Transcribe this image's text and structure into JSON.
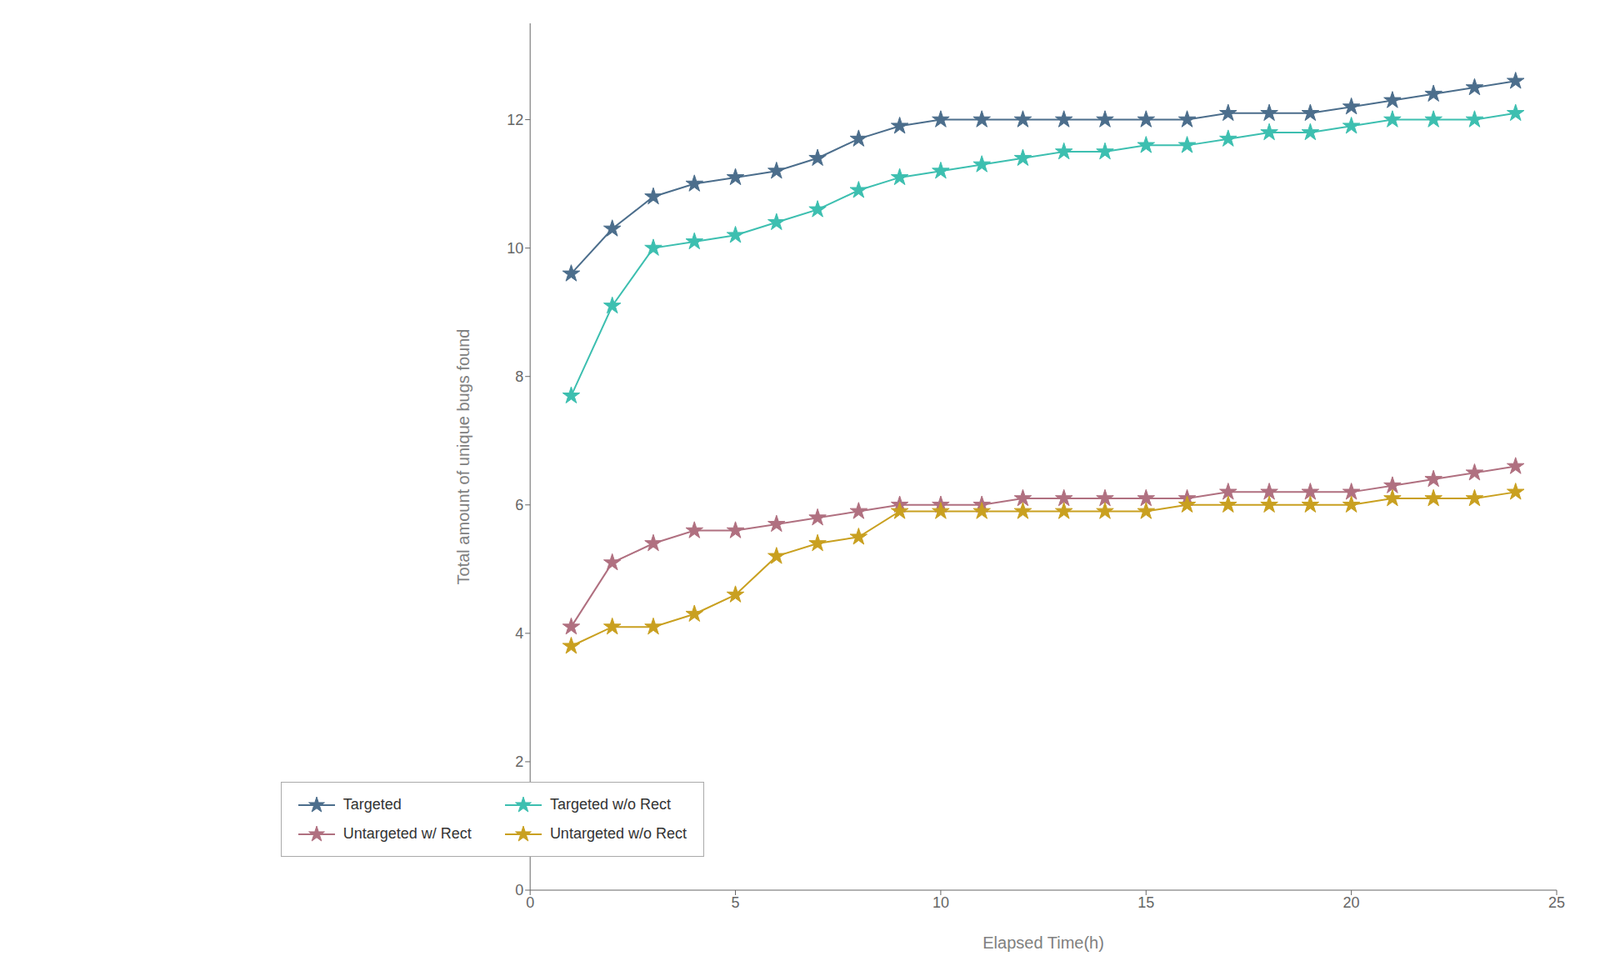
{
  "chart_data": {
    "type": "line",
    "x": [
      1,
      2,
      3,
      4,
      5,
      6,
      7,
      8,
      9,
      10,
      11,
      12,
      13,
      14,
      15,
      16,
      17,
      18,
      19,
      20,
      21,
      22,
      23,
      24
    ],
    "series": [
      {
        "name": "Targeted",
        "color": "#4c6e8c",
        "marker": "star",
        "values": [
          9.6,
          10.3,
          10.8,
          11.0,
          11.1,
          11.2,
          11.4,
          11.7,
          11.9,
          12.0,
          12.0,
          12.0,
          12.0,
          12.0,
          12.0,
          12.0,
          12.1,
          12.1,
          12.1,
          12.2,
          12.3,
          12.4,
          12.5,
          12.6
        ]
      },
      {
        "name": "Targeted w/o Rect",
        "color": "#3dbfb0",
        "marker": "star",
        "values": [
          7.7,
          9.1,
          10.0,
          10.1,
          10.2,
          10.4,
          10.6,
          10.9,
          11.1,
          11.2,
          11.3,
          11.4,
          11.5,
          11.5,
          11.6,
          11.6,
          11.7,
          11.8,
          11.8,
          11.9,
          12.0,
          12.0,
          12.0,
          12.1
        ]
      },
      {
        "name": "Untargeted w/ Rect",
        "color": "#b07080",
        "marker": "star",
        "values": [
          4.1,
          5.1,
          5.4,
          5.6,
          5.6,
          5.7,
          5.8,
          5.9,
          6.0,
          6.0,
          6.0,
          6.1,
          6.1,
          6.1,
          6.1,
          6.1,
          6.2,
          6.2,
          6.2,
          6.2,
          6.3,
          6.4,
          6.5,
          6.6
        ]
      },
      {
        "name": "Untargeted w/o Rect",
        "color": "#c9a020",
        "marker": "star",
        "values": [
          3.8,
          4.1,
          4.1,
          4.3,
          4.6,
          5.2,
          5.4,
          5.5,
          5.9,
          5.9,
          5.9,
          5.9,
          5.9,
          5.9,
          5.9,
          6.0,
          6.0,
          6.0,
          6.0,
          6.0,
          6.1,
          6.1,
          6.1,
          6.2
        ]
      }
    ],
    "xlabel": "Elapsed Time(h)",
    "ylabel": "Total amount of unique bugs found",
    "xlim": [
      0,
      25
    ],
    "ylim": [
      0,
      13.5
    ],
    "xticks": [
      0,
      5,
      10,
      15,
      20,
      25
    ],
    "yticks": [
      0,
      2,
      4,
      6,
      8,
      10,
      12
    ],
    "grid": false,
    "legend": "lower left"
  }
}
